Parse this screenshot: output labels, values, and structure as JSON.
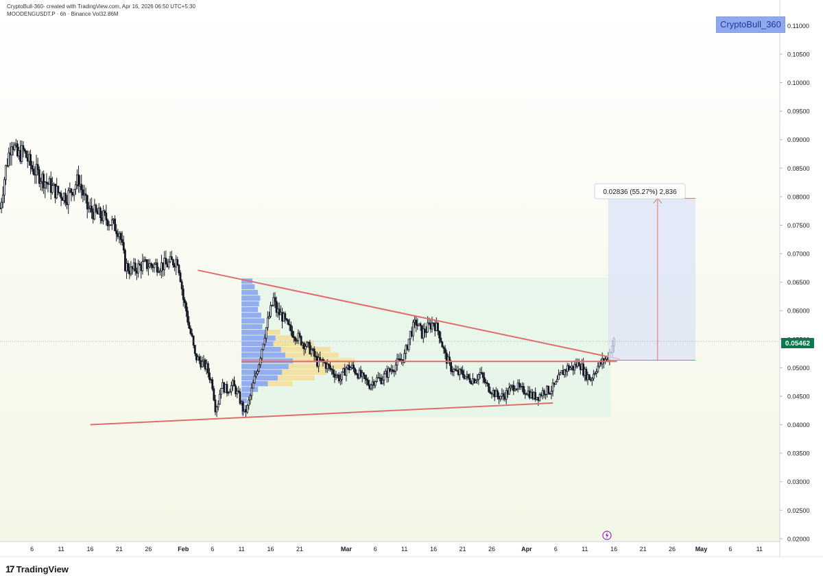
{
  "header": {
    "line": "CryptoBull-360- created with TradingView.com, Apr 16, 2026 06:50 UTC+5:30",
    "symbol_line": "MOODENGUSDT.P · 6h · Binance  Vol32.86M"
  },
  "watermark": "CryptoBull_360",
  "footer": {
    "brand": "TradingView",
    "logo_glyph": "17"
  },
  "measure_label": "0.02836 (55.27%) 2,836",
  "current_price_label": "0.05462",
  "colors": {
    "up": "#ffffff",
    "down": "#131722",
    "trendline": "#e06c6c",
    "target_fill": "#dbe3f7",
    "range_fill": "#e3f3e8",
    "vp_blue": "#6f8ff0",
    "vp_yellow": "#f6d98b",
    "price_tag": "#0a7a4a"
  },
  "chart_data": {
    "type": "candlestick",
    "title": "MOODENGUSDT.P · 6h · Binance",
    "y_ticks": [
      "0.11000",
      "0.10500",
      "0.10000",
      "0.09500",
      "0.09000",
      "0.08500",
      "0.08000",
      "0.07500",
      "0.07000",
      "0.06500",
      "0.06000",
      "0.05500",
      "0.05000",
      "0.04500",
      "0.04000",
      "0.03500",
      "0.03000",
      "0.02500",
      "0.02000"
    ],
    "ylim": [
      0.0195,
      0.1145
    ],
    "x_ticks": [
      "6",
      "11",
      "16",
      "21",
      "26",
      "Feb",
      "6",
      "11",
      "16",
      "21",
      "Mar",
      "6",
      "11",
      "16",
      "21",
      "26",
      "Apr",
      "6",
      "11",
      "16",
      "21",
      "26",
      "May",
      "6",
      "11"
    ],
    "x_tick_days": [
      -26,
      -21,
      -16,
      -11,
      -6,
      0,
      5,
      10,
      15,
      20,
      28,
      33,
      38,
      43,
      48,
      53,
      59,
      64,
      69,
      74,
      79,
      84,
      89,
      94,
      99
    ],
    "x_range_days": [
      -31.5,
      102.5
    ],
    "keypoints": [
      [
        -31.5,
        0.078
      ],
      [
        -30.5,
        0.085
      ],
      [
        -29.5,
        0.09
      ],
      [
        -28.5,
        0.087
      ],
      [
        -27.5,
        0.088
      ],
      [
        -26,
        0.085
      ],
      [
        -24,
        0.083
      ],
      [
        -22,
        0.081
      ],
      [
        -20,
        0.08
      ],
      [
        -18,
        0.083
      ],
      [
        -16.5,
        0.078
      ],
      [
        -15,
        0.077
      ],
      [
        -13,
        0.076
      ],
      [
        -11,
        0.074
      ],
      [
        -10,
        0.068
      ],
      [
        -9,
        0.067
      ],
      [
        -7,
        0.068
      ],
      [
        -5,
        0.068
      ],
      [
        -3,
        0.068
      ],
      [
        -1,
        0.069
      ],
      [
        -0.5,
        0.066
      ],
      [
        0,
        0.062
      ],
      [
        0.5,
        0.06
      ],
      [
        1,
        0.057
      ],
      [
        1.5,
        0.055
      ],
      [
        2,
        0.052
      ],
      [
        3,
        0.051
      ],
      [
        4,
        0.05
      ],
      [
        5,
        0.047
      ],
      [
        5.5,
        0.043
      ],
      [
        6,
        0.044
      ],
      [
        6.5,
        0.047
      ],
      [
        7.5,
        0.046
      ],
      [
        8.5,
        0.047
      ],
      [
        9.5,
        0.045
      ],
      [
        10.5,
        0.042
      ],
      [
        11,
        0.043
      ],
      [
        12,
        0.047
      ],
      [
        13,
        0.051
      ],
      [
        14,
        0.056
      ],
      [
        15,
        0.06
      ],
      [
        15.5,
        0.062
      ],
      [
        16,
        0.06
      ],
      [
        17,
        0.059
      ],
      [
        18,
        0.057
      ],
      [
        19,
        0.056
      ],
      [
        20,
        0.055
      ],
      [
        21,
        0.054
      ],
      [
        22,
        0.053
      ],
      [
        23,
        0.051
      ],
      [
        24,
        0.051
      ],
      [
        25,
        0.05
      ],
      [
        26,
        0.049
      ],
      [
        27,
        0.048
      ],
      [
        28,
        0.05
      ],
      [
        29,
        0.05
      ],
      [
        30,
        0.049
      ],
      [
        31,
        0.048
      ],
      [
        32,
        0.047
      ],
      [
        33,
        0.048
      ],
      [
        34,
        0.048
      ],
      [
        35,
        0.049
      ],
      [
        36,
        0.05
      ],
      [
        37,
        0.051
      ],
      [
        38,
        0.052
      ],
      [
        39,
        0.056
      ],
      [
        40,
        0.058
      ],
      [
        41,
        0.056
      ],
      [
        42,
        0.057
      ],
      [
        43,
        0.058
      ],
      [
        44,
        0.056
      ],
      [
        45,
        0.052
      ],
      [
        46,
        0.05
      ],
      [
        47,
        0.049
      ],
      [
        48,
        0.049
      ],
      [
        49,
        0.048
      ],
      [
        50,
        0.048
      ],
      [
        51,
        0.049
      ],
      [
        52,
        0.047
      ],
      [
        53,
        0.046
      ],
      [
        54,
        0.045
      ],
      [
        55,
        0.045
      ],
      [
        56,
        0.046
      ],
      [
        57,
        0.047
      ],
      [
        58,
        0.046
      ],
      [
        59,
        0.046
      ],
      [
        60,
        0.045
      ],
      [
        61,
        0.045
      ],
      [
        62,
        0.046
      ],
      [
        63,
        0.046
      ],
      [
        64,
        0.047
      ],
      [
        65,
        0.049
      ],
      [
        66,
        0.05
      ],
      [
        67,
        0.05
      ],
      [
        68,
        0.051
      ],
      [
        69,
        0.049
      ],
      [
        70,
        0.048
      ],
      [
        71,
        0.05
      ],
      [
        72,
        0.051
      ],
      [
        73,
        0.052
      ],
      [
        74,
        0.05462
      ]
    ],
    "trendlines": [
      {
        "name": "descending resistance",
        "from": [
          2.5,
          0.0671
        ],
        "to": [
          75,
          0.0515
        ]
      },
      {
        "name": "ascending support",
        "from": [
          -16,
          0.04
        ],
        "to": [
          63.5,
          0.0438
        ]
      },
      {
        "name": "horizontal level",
        "from": [
          10,
          0.0511
        ],
        "to": [
          74.5,
          0.0511
        ]
      }
    ],
    "range_box": {
      "x": [
        10,
        73.5
      ],
      "y": [
        0.0413,
        0.0658
      ]
    },
    "target_box": {
      "x": [
        73,
        88
      ],
      "y": [
        0.0513,
        0.0797
      ]
    },
    "measure_arrow": {
      "x": 81.5,
      "from": 0.0513,
      "to": 0.0797
    },
    "volume_profile": {
      "x_start_day": 10,
      "rows": [
        {
          "price": 0.0652,
          "blue": 20,
          "yellow": 0
        },
        {
          "price": 0.0642,
          "blue": 24,
          "yellow": 0
        },
        {
          "price": 0.0632,
          "blue": 30,
          "yellow": 0
        },
        {
          "price": 0.0622,
          "blue": 34,
          "yellow": 0
        },
        {
          "price": 0.0612,
          "blue": 32,
          "yellow": 0
        },
        {
          "price": 0.0602,
          "blue": 30,
          "yellow": 0
        },
        {
          "price": 0.0592,
          "blue": 36,
          "yellow": 0
        },
        {
          "price": 0.0582,
          "blue": 42,
          "yellow": 0
        },
        {
          "price": 0.0572,
          "blue": 38,
          "yellow": 0
        },
        {
          "price": 0.0562,
          "blue": 46,
          "yellow": 22
        },
        {
          "price": 0.0552,
          "blue": 62,
          "yellow": 38
        },
        {
          "price": 0.0542,
          "blue": 58,
          "yellow": 66
        },
        {
          "price": 0.0532,
          "blue": 72,
          "yellow": 80
        },
        {
          "price": 0.0522,
          "blue": 80,
          "yellow": 86
        },
        {
          "price": 0.0512,
          "blue": 94,
          "yellow": 100
        },
        {
          "price": 0.0502,
          "blue": 86,
          "yellow": 90
        },
        {
          "price": 0.0492,
          "blue": 74,
          "yellow": 72
        },
        {
          "price": 0.0482,
          "blue": 66,
          "yellow": 60
        },
        {
          "price": 0.0472,
          "blue": 48,
          "yellow": 40
        },
        {
          "price": 0.0462,
          "blue": 30,
          "yellow": 0
        },
        {
          "price": 0.0452,
          "blue": 18,
          "yellow": 0
        },
        {
          "price": 0.0442,
          "blue": 10,
          "yellow": 0
        },
        {
          "price": 0.0432,
          "blue": 6,
          "yellow": 0
        },
        {
          "price": 0.0422,
          "blue": 4,
          "yellow": 0
        }
      ]
    }
  }
}
